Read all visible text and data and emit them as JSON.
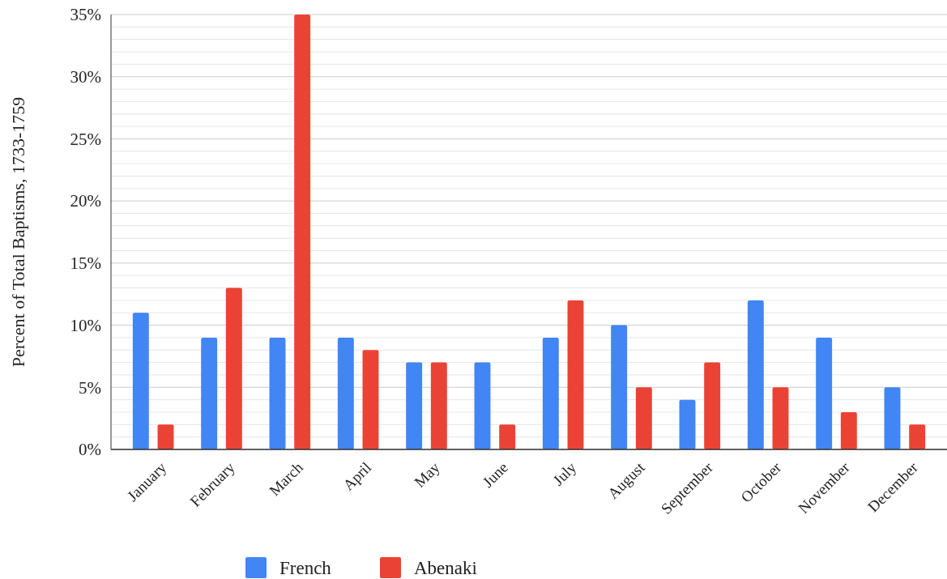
{
  "chart_data": {
    "type": "bar",
    "ylabel": "Percent of Total Baptisms, 1733-1759",
    "categories": [
      "January",
      "February",
      "March",
      "April",
      "May",
      "June",
      "July",
      "August",
      "September",
      "October",
      "November",
      "December"
    ],
    "series": [
      {
        "name": "French",
        "color": "#4285f4",
        "values": [
          11,
          9,
          9,
          9,
          7,
          7,
          9,
          10,
          4,
          12,
          9,
          5
        ]
      },
      {
        "name": "Abenaki",
        "color": "#ea4335",
        "values": [
          2,
          13,
          35,
          8,
          7,
          2,
          12,
          5,
          7,
          5,
          3,
          2
        ]
      }
    ],
    "ylim": [
      0,
      35
    ],
    "yticks": [
      {
        "value": 0,
        "label": "0%"
      },
      {
        "value": 1,
        "label": null
      },
      {
        "value": 2,
        "label": null
      },
      {
        "value": 3,
        "label": null
      },
      {
        "value": 4,
        "label": null
      },
      {
        "value": 5,
        "label": "5%"
      },
      {
        "value": 6,
        "label": null
      },
      {
        "value": 7,
        "label": null
      },
      {
        "value": 8,
        "label": null
      },
      {
        "value": 9,
        "label": null
      },
      {
        "value": 10,
        "label": "10%"
      },
      {
        "value": 11,
        "label": null
      },
      {
        "value": 12,
        "label": null
      },
      {
        "value": 13,
        "label": null
      },
      {
        "value": 14,
        "label": null
      },
      {
        "value": 15,
        "label": "15%"
      },
      {
        "value": 16,
        "label": null
      },
      {
        "value": 17,
        "label": null
      },
      {
        "value": 18,
        "label": null
      },
      {
        "value": 19,
        "label": null
      },
      {
        "value": 20,
        "label": "20%"
      },
      {
        "value": 21,
        "label": null
      },
      {
        "value": 22,
        "label": null
      },
      {
        "value": 23,
        "label": null
      },
      {
        "value": 24,
        "label": null
      },
      {
        "value": 25,
        "label": "25%"
      },
      {
        "value": 26,
        "label": null
      },
      {
        "value": 27,
        "label": null
      },
      {
        "value": 28,
        "label": null
      },
      {
        "value": 29,
        "label": null
      },
      {
        "value": 30,
        "label": "30%"
      },
      {
        "value": 31,
        "label": null
      },
      {
        "value": 32,
        "label": null
      },
      {
        "value": 33,
        "label": null
      },
      {
        "value": 34,
        "label": null
      },
      {
        "value": 35,
        "label": "35%"
      }
    ],
    "grid": "y",
    "legend": "bottom"
  }
}
